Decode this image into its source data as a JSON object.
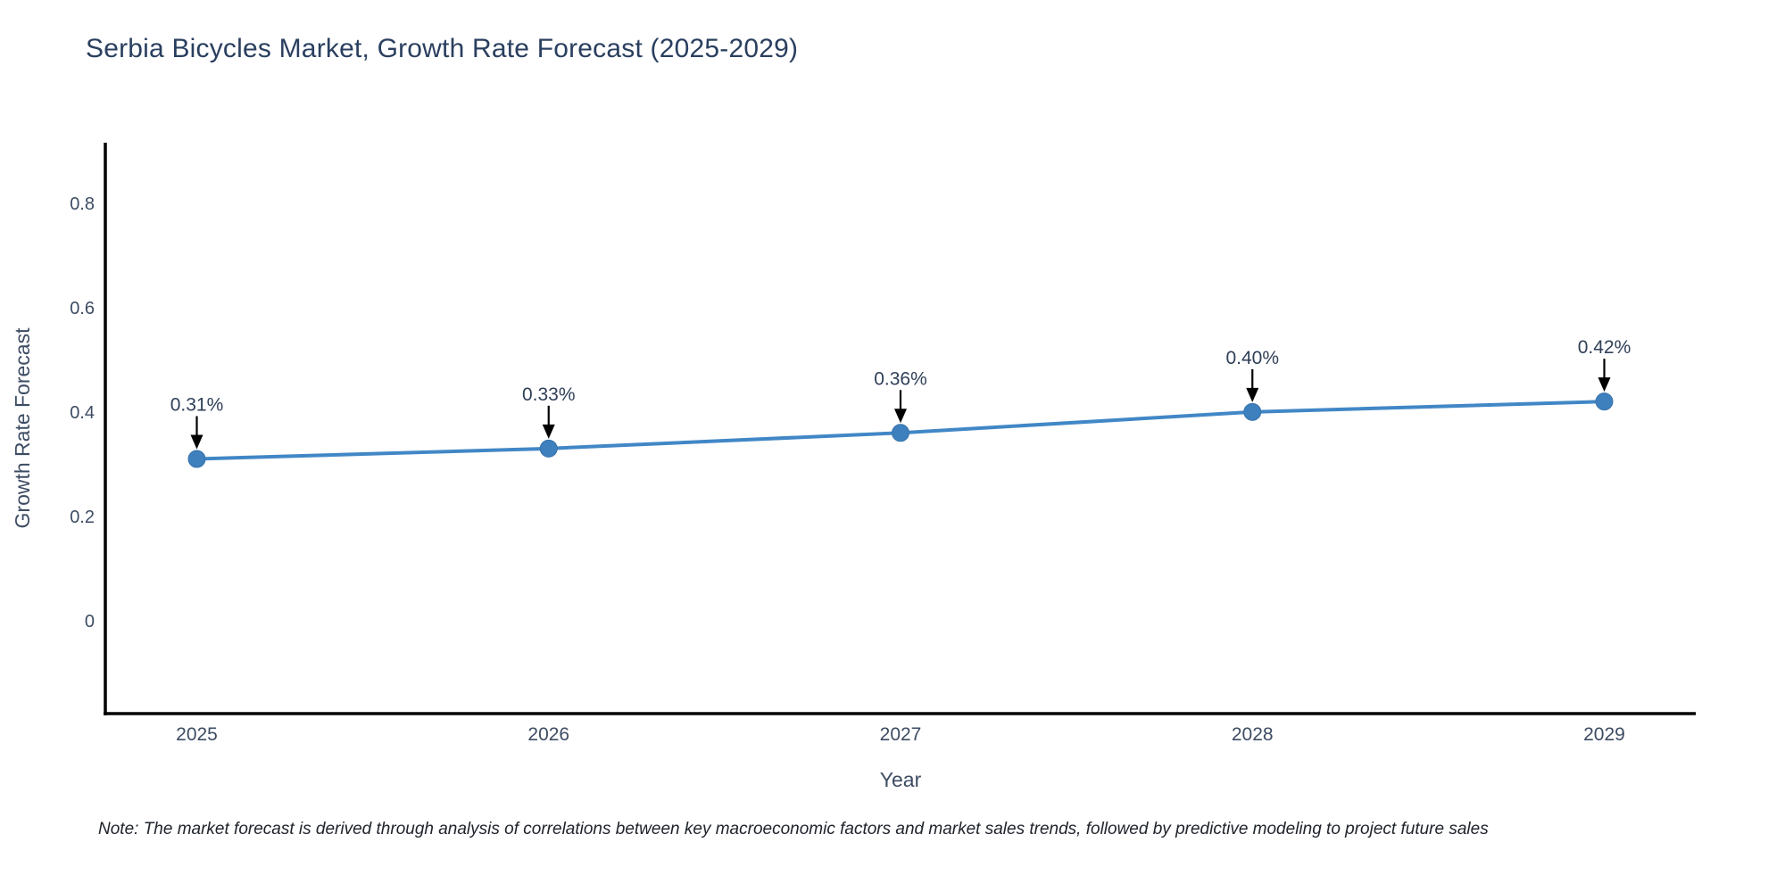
{
  "note": "Note: The market forecast is derived through analysis of correlations between key macroeconomic factors and market sales trends, followed by predictive modeling to project future sales",
  "chart_data": {
    "type": "line",
    "title": "Serbia Bicycles Market, Growth Rate Forecast (2025-2029)",
    "xlabel": "Year",
    "ylabel": "Growth Rate Forecast",
    "x": [
      2025,
      2026,
      2027,
      2028,
      2029
    ],
    "series": [
      {
        "name": "Growth Rate Forecast",
        "values": [
          0.31,
          0.33,
          0.36,
          0.4,
          0.42
        ]
      }
    ],
    "point_labels": [
      "0.31%",
      "0.33%",
      "0.36%",
      "0.40%",
      "0.42%"
    ],
    "xticks": [
      "2025",
      "2026",
      "2027",
      "2028",
      "2029"
    ],
    "yticks": [
      0,
      0.2,
      0.4,
      0.6,
      0.8
    ],
    "xlim": [
      2024.74,
      2029.26
    ],
    "ylim": [
      -0.178,
      0.916
    ],
    "grid": false,
    "legend": "none",
    "colors": {
      "line": "#4187c6",
      "marker": "#3e7fbd",
      "marker_edge": "#3973ab",
      "axis": "#000000",
      "annotation_arrow": "#000000",
      "annotation_text": "#2f3f58",
      "tick_text": "#3d4c63",
      "title_text": "#2a3f5f"
    }
  }
}
